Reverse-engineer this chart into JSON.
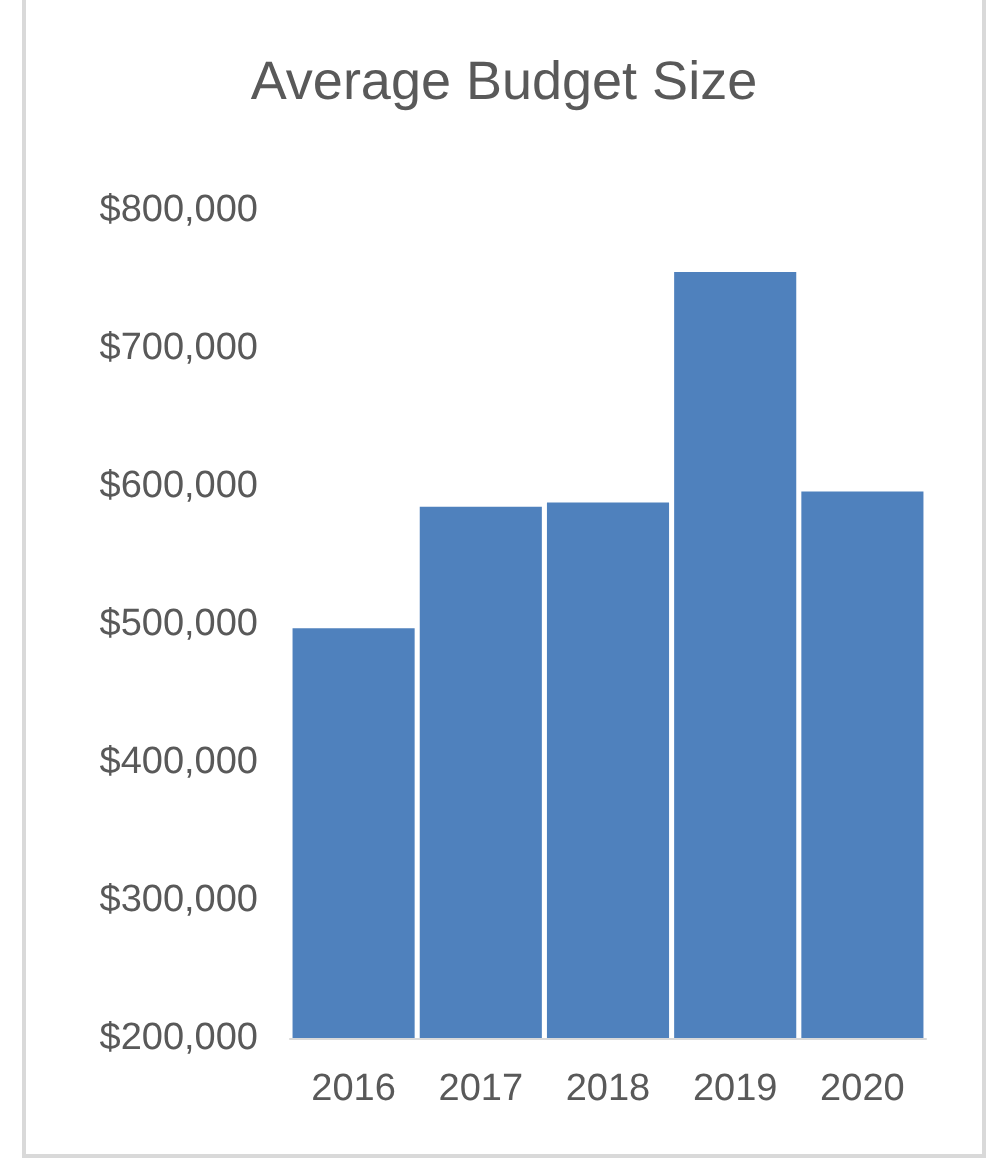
{
  "chart_data": {
    "type": "bar",
    "title": "Average Budget Size",
    "categories": [
      "2016",
      "2017",
      "2018",
      "2019",
      "2020"
    ],
    "values": [
      497000,
      585000,
      588000,
      755000,
      596000
    ],
    "color": "#4f81bd",
    "ylim": [
      200000,
      800000
    ],
    "yticks": [
      {
        "value": 200000,
        "label": "$200,000"
      },
      {
        "value": 300000,
        "label": "$300,000"
      },
      {
        "value": 400000,
        "label": "$400,000"
      },
      {
        "value": 500000,
        "label": "$500,000"
      },
      {
        "value": 600000,
        "label": "$600,000"
      },
      {
        "value": 700000,
        "label": "$700,000"
      },
      {
        "value": 800000,
        "label": "$800,000"
      }
    ],
    "grid": false
  }
}
